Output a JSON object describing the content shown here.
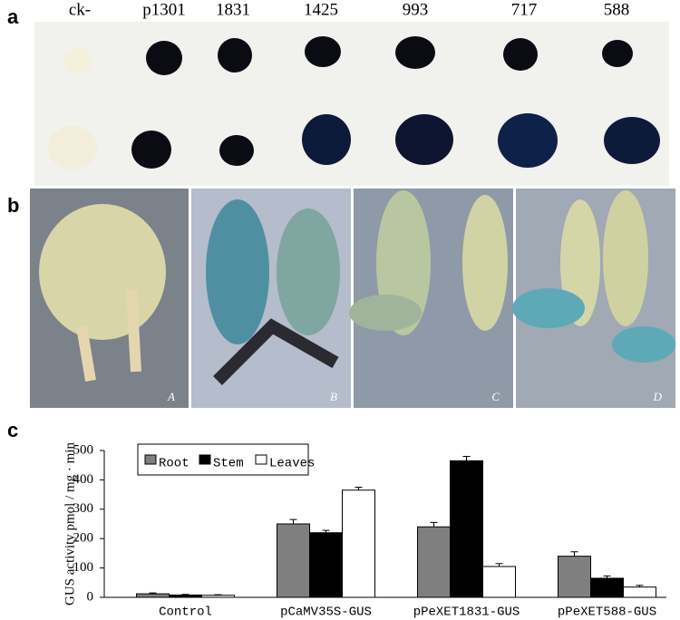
{
  "panels": {
    "a": "a",
    "b": "b",
    "c": "c"
  },
  "panel_a": {
    "columns": [
      "ck-",
      "p1301",
      "1831",
      "1425",
      "993",
      "717",
      "588"
    ]
  },
  "panel_b": {
    "photos": [
      "A",
      "B",
      "C",
      "D"
    ]
  },
  "chart_data": {
    "type": "bar",
    "y_label": "GUS activity pmol / mg · min",
    "categories": [
      "Control",
      "pCaMV35S-GUS",
      "pPeXET1831-GUS",
      "pPeXET588-GUS"
    ],
    "series": [
      {
        "name": "Root",
        "color": "#7f7f7f",
        "values": [
          12,
          250,
          240,
          140
        ],
        "errors": [
          3,
          15,
          15,
          15
        ]
      },
      {
        "name": "Stem",
        "color": "#000000",
        "values": [
          8,
          220,
          465,
          65
        ],
        "errors": [
          2,
          8,
          15,
          8
        ]
      },
      {
        "name": "Leaves",
        "color": "#ffffff",
        "values": [
          7,
          365,
          105,
          35
        ],
        "errors": [
          2,
          10,
          10,
          6
        ]
      }
    ],
    "ylim": [
      0,
      500
    ],
    "yticks": [
      0,
      100,
      200,
      300,
      400,
      500
    ],
    "legend": "top-left"
  }
}
